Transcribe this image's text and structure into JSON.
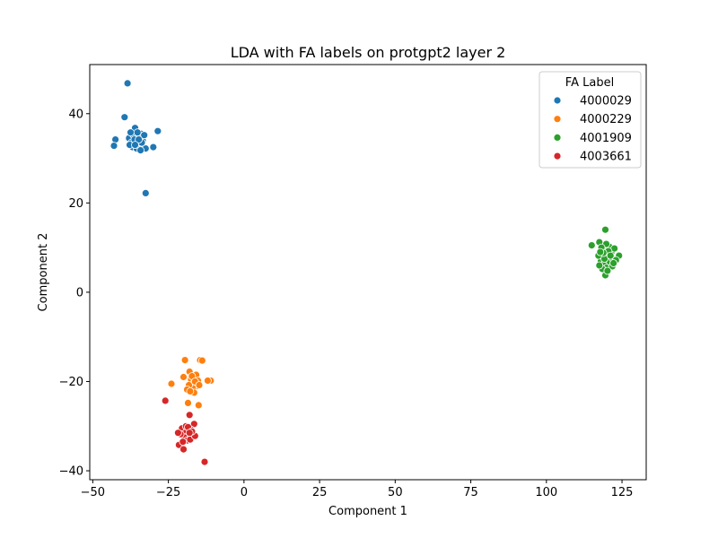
{
  "chart_data": {
    "type": "scatter",
    "title": "LDA with FA labels on protgpt2 layer 2",
    "xlabel": "Component 1",
    "ylabel": "Component 2",
    "xlim": [
      -51,
      133
    ],
    "ylim": [
      -42,
      51
    ],
    "xticks": [
      -50,
      -25,
      0,
      25,
      50,
      75,
      100,
      125
    ],
    "yticks": [
      -40,
      -20,
      0,
      20,
      40
    ],
    "xtick_labels": [
      "−50",
      "−25",
      "0",
      "25",
      "50",
      "75",
      "100",
      "125"
    ],
    "ytick_labels": [
      "−40",
      "−20",
      "0",
      "20",
      "40"
    ],
    "grid": false,
    "legend": {
      "title": "FA Label",
      "position": "top-right"
    },
    "series": [
      {
        "name": "4000029",
        "color": "#1f77b4",
        "points": [
          [
            -38.5,
            46.8
          ],
          [
            -39.5,
            39.2
          ],
          [
            -28.5,
            36.1
          ],
          [
            -36.0,
            36.8
          ],
          [
            -42.5,
            34.2
          ],
          [
            -43.0,
            32.8
          ],
          [
            -32.5,
            32.2
          ],
          [
            -30.0,
            32.5
          ],
          [
            -32.5,
            22.2
          ],
          [
            -38.0,
            34.5
          ],
          [
            -37.2,
            33.5
          ],
          [
            -36.5,
            35.2
          ],
          [
            -35.8,
            33.8
          ],
          [
            -35.0,
            34.8
          ],
          [
            -34.5,
            33.2
          ],
          [
            -34.0,
            35.5
          ],
          [
            -33.5,
            34.0
          ],
          [
            -33.0,
            35.2
          ],
          [
            -36.8,
            32.5
          ],
          [
            -35.5,
            32.2
          ],
          [
            -34.2,
            31.8
          ],
          [
            -37.5,
            35.8
          ],
          [
            -36.2,
            34.2
          ],
          [
            -35.2,
            35.8
          ],
          [
            -33.8,
            33.5
          ],
          [
            -37.8,
            33.0
          ],
          [
            -34.8,
            34.2
          ],
          [
            -36.0,
            33.0
          ]
        ]
      },
      {
        "name": "4000229",
        "color": "#ff7f0e",
        "points": [
          [
            -19.5,
            -15.2
          ],
          [
            -14.5,
            -15.2
          ],
          [
            -13.8,
            -15.3
          ],
          [
            -24.0,
            -20.5
          ],
          [
            -11.0,
            -19.8
          ],
          [
            -12.0,
            -19.8
          ],
          [
            -18.5,
            -24.8
          ],
          [
            -15.0,
            -25.3
          ],
          [
            -18.0,
            -17.8
          ],
          [
            -20.0,
            -19.0
          ],
          [
            -17.5,
            -19.5
          ],
          [
            -16.8,
            -20.5
          ],
          [
            -16.0,
            -19.2
          ],
          [
            -15.5,
            -21.0
          ],
          [
            -17.0,
            -21.5
          ],
          [
            -18.2,
            -20.8
          ],
          [
            -15.8,
            -18.5
          ],
          [
            -16.5,
            -22.5
          ],
          [
            -17.2,
            -18.8
          ],
          [
            -15.2,
            -19.8
          ],
          [
            -18.8,
            -21.8
          ],
          [
            -16.2,
            -20.0
          ],
          [
            -17.8,
            -22.2
          ],
          [
            -14.8,
            -20.8
          ]
        ]
      },
      {
        "name": "4001909",
        "color": "#2ca02c",
        "points": [
          [
            119.5,
            14.0
          ],
          [
            117.5,
            11.2
          ],
          [
            115.0,
            10.5
          ],
          [
            124.0,
            8.2
          ],
          [
            119.5,
            3.8
          ],
          [
            118.5,
            9.5
          ],
          [
            119.5,
            8.5
          ],
          [
            120.5,
            7.8
          ],
          [
            121.5,
            9.0
          ],
          [
            118.0,
            7.0
          ],
          [
            119.0,
            6.2
          ],
          [
            120.0,
            5.5
          ],
          [
            121.0,
            6.8
          ],
          [
            122.0,
            7.5
          ],
          [
            117.2,
            8.2
          ],
          [
            118.5,
            5.2
          ],
          [
            120.8,
            10.2
          ],
          [
            119.8,
            10.8
          ],
          [
            122.5,
            9.8
          ],
          [
            117.5,
            6.0
          ],
          [
            121.8,
            5.8
          ],
          [
            120.2,
            4.8
          ],
          [
            118.2,
            10.0
          ],
          [
            123.0,
            7.2
          ],
          [
            119.2,
            7.5
          ],
          [
            120.5,
            9.2
          ],
          [
            121.2,
            8.2
          ],
          [
            118.8,
            8.8
          ],
          [
            122.2,
            6.5
          ],
          [
            117.8,
            9.0
          ]
        ]
      },
      {
        "name": "4003661",
        "color": "#d62728",
        "points": [
          [
            -18.0,
            -27.5
          ],
          [
            -26.0,
            -24.3
          ],
          [
            -13.0,
            -38.0
          ],
          [
            -21.5,
            -34.2
          ],
          [
            -20.0,
            -35.2
          ],
          [
            -16.5,
            -29.5
          ],
          [
            -20.5,
            -30.5
          ],
          [
            -19.0,
            -31.2
          ],
          [
            -18.2,
            -32.0
          ],
          [
            -17.5,
            -30.8
          ],
          [
            -16.8,
            -31.8
          ],
          [
            -19.8,
            -32.5
          ],
          [
            -18.8,
            -33.2
          ],
          [
            -17.8,
            -33.0
          ],
          [
            -21.0,
            -31.8
          ],
          [
            -16.2,
            -32.2
          ],
          [
            -19.2,
            -30.0
          ],
          [
            -18.5,
            -30.2
          ],
          [
            -20.2,
            -33.5
          ],
          [
            -17.2,
            -31.2
          ],
          [
            -21.8,
            -31.5
          ],
          [
            -18.0,
            -31.5
          ]
        ]
      }
    ]
  }
}
